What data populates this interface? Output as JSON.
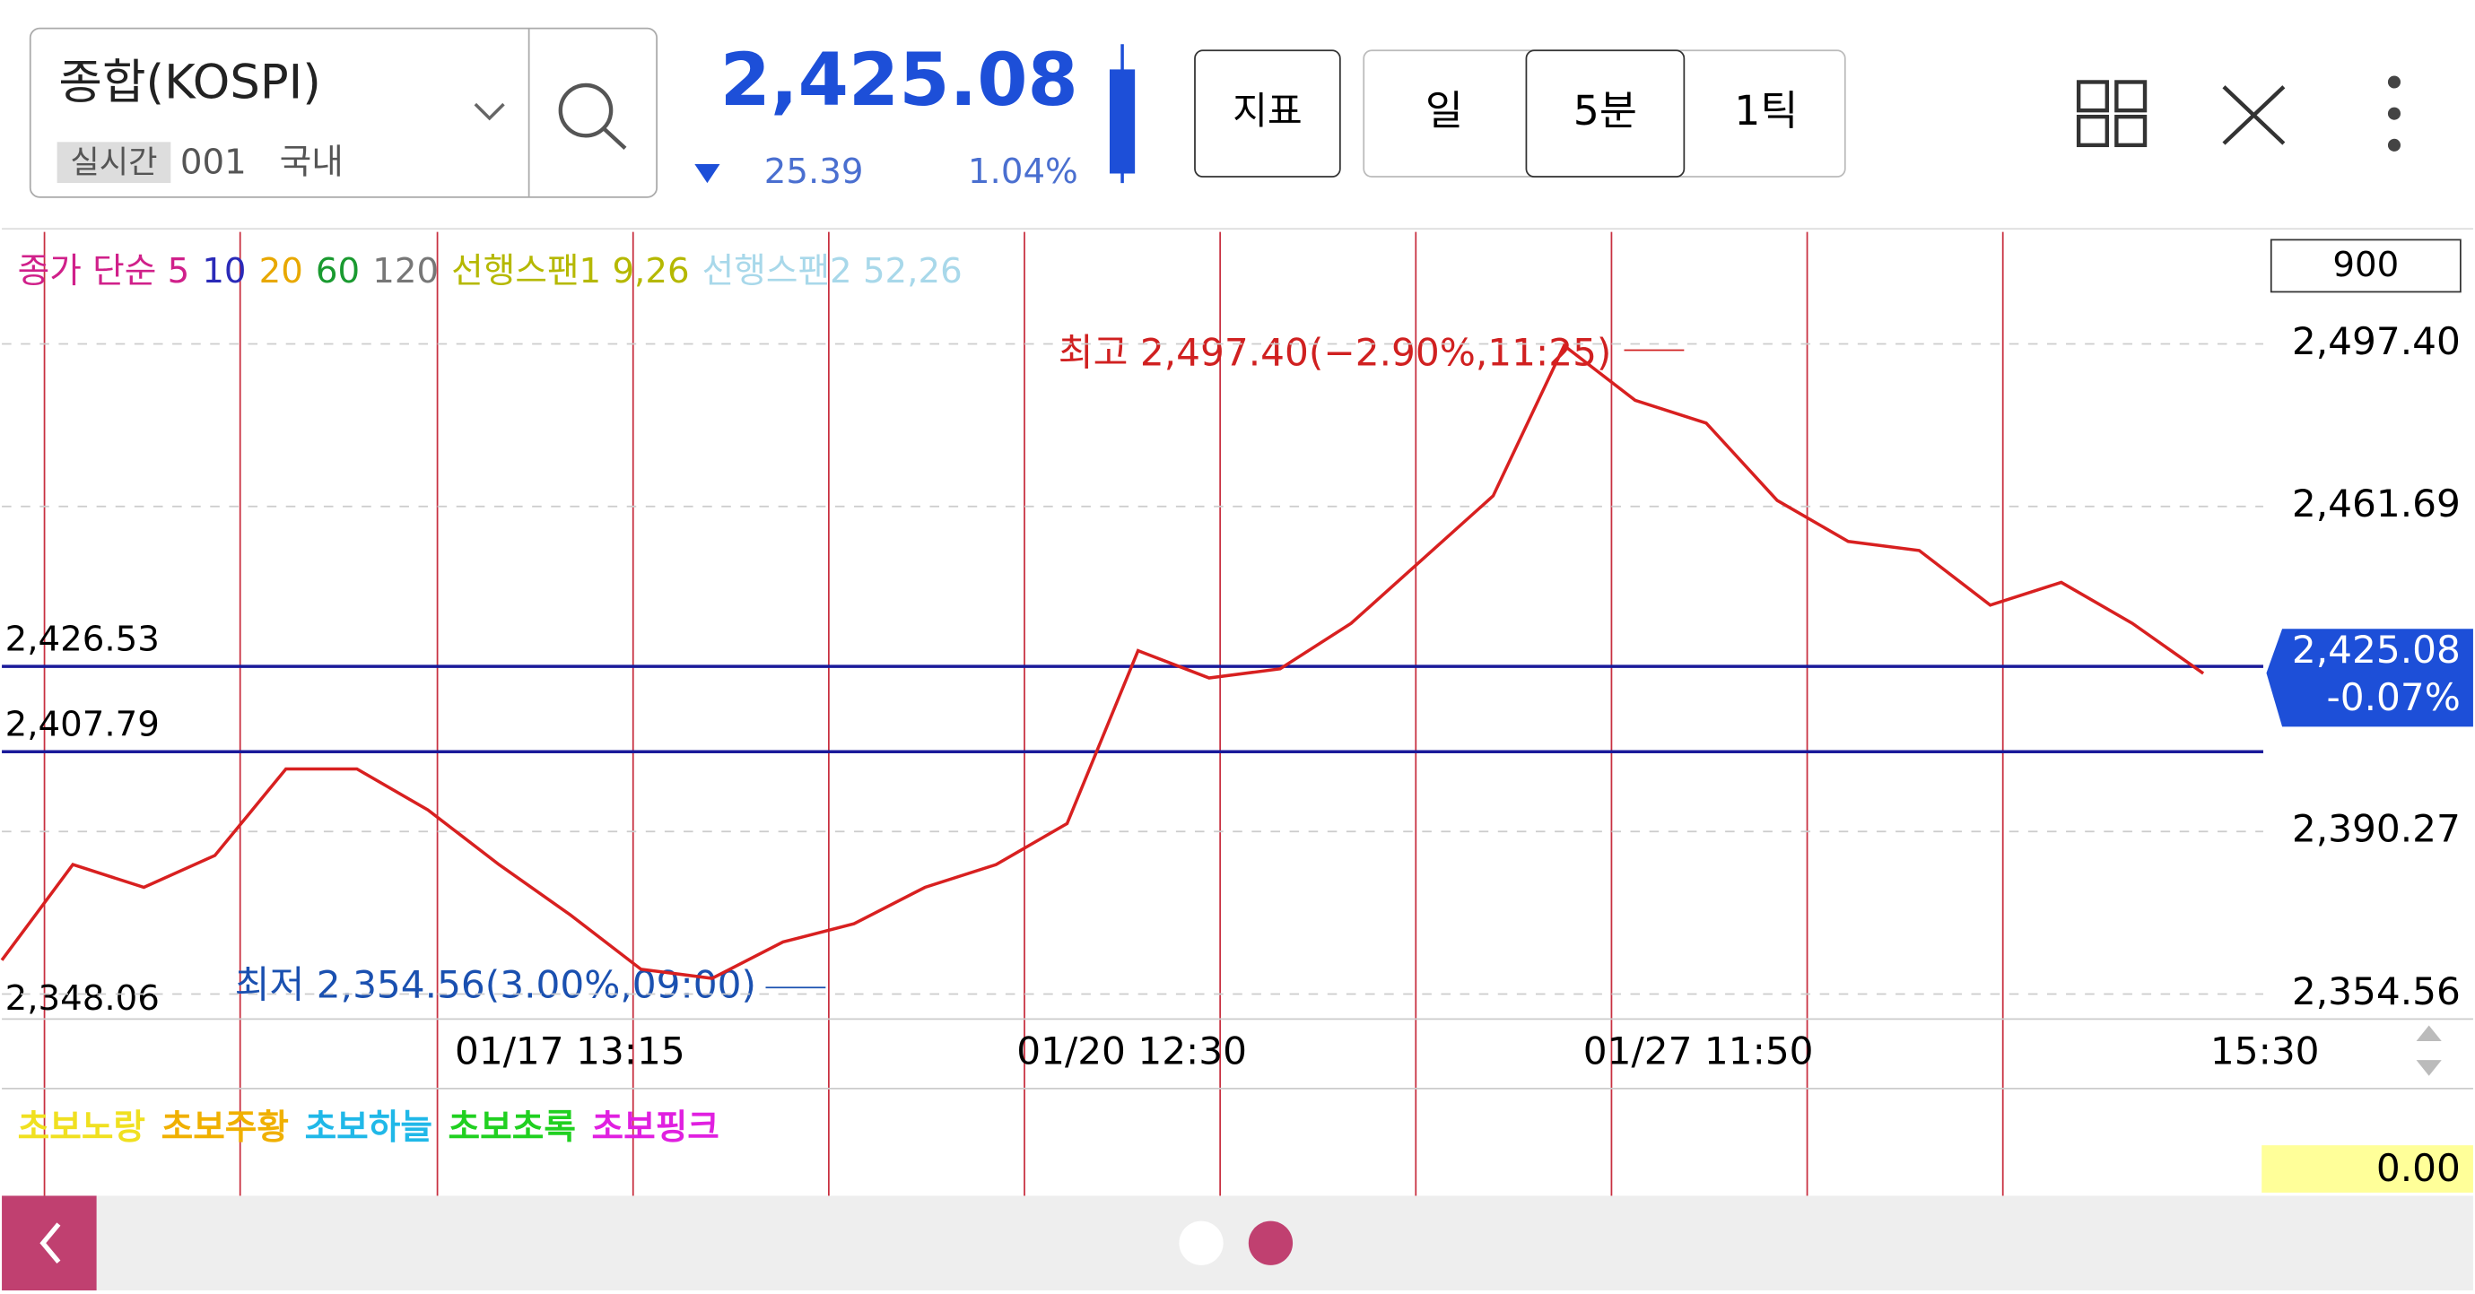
{
  "header": {
    "symbol": "종합(KOSPI)",
    "badge": "실시간",
    "code": "001",
    "market": "국내",
    "price": "2,425.08",
    "change": "25.39",
    "change_pct": "1.04%",
    "buttons": [
      "지표",
      "일",
      "5분",
      "1틱"
    ]
  },
  "legend": {
    "items": [
      "종가 단순 5",
      "10",
      "20",
      "60",
      "120",
      "선행스팬1 9,26",
      "선행스팬2 52,26"
    ],
    "colors": [
      "#d0208a",
      "#2a2ab8",
      "#e8a800",
      "#1a9a30",
      "#777777",
      "#b5b800",
      "#a8d8ea"
    ]
  },
  "chart_data": {
    "type": "line",
    "series": [
      {
        "name": "종가",
        "color": "#d82020",
        "values": [
          2362,
          2383,
          2378,
          2385,
          2404,
          2404,
          2395,
          2383,
          2372,
          2360,
          2358,
          2366,
          2370,
          2378,
          2383,
          2392,
          2430,
          2424,
          2426,
          2436,
          2450,
          2464,
          2497,
          2485,
          2480,
          2463,
          2454,
          2452,
          2440,
          2445,
          2436,
          2425
        ]
      }
    ],
    "ylim": [
      2349.4,
      2522.0
    ],
    "yticks": [
      {
        "value": 2354.56,
        "label": "2,354.56"
      },
      {
        "value": 2390.27,
        "label": "2,390.27"
      },
      {
        "value": 2461.69,
        "label": "2,461.69"
      },
      {
        "value": 2497.4,
        "label": "2,497.40"
      }
    ],
    "ref_lines": [
      {
        "value": 2426.53,
        "label": "2,426.53"
      },
      {
        "value": 2407.79,
        "label": "2,407.79"
      }
    ],
    "low_label": "2,348.06",
    "scale_box": "900",
    "last": {
      "value": 2425.08,
      "label": "2,425.08",
      "change": "-0.07%"
    },
    "annotations": {
      "high": "최고 2,497.40(−2.90%,11:25)",
      "low": "최저 2,354.56(3.00%,09:00)"
    },
    "x_labels": [
      "01/17 13:15",
      "01/20 12:30",
      "01/27 11:50",
      "15:30"
    ]
  },
  "indicator": {
    "items": [
      "초보노랑",
      "초보주황",
      "초보하늘",
      "초보초록",
      "초보핑크"
    ],
    "colors": [
      "#f0e020",
      "#f0b000",
      "#20b8e8",
      "#20d020",
      "#e020e0"
    ],
    "value": "0.00"
  }
}
